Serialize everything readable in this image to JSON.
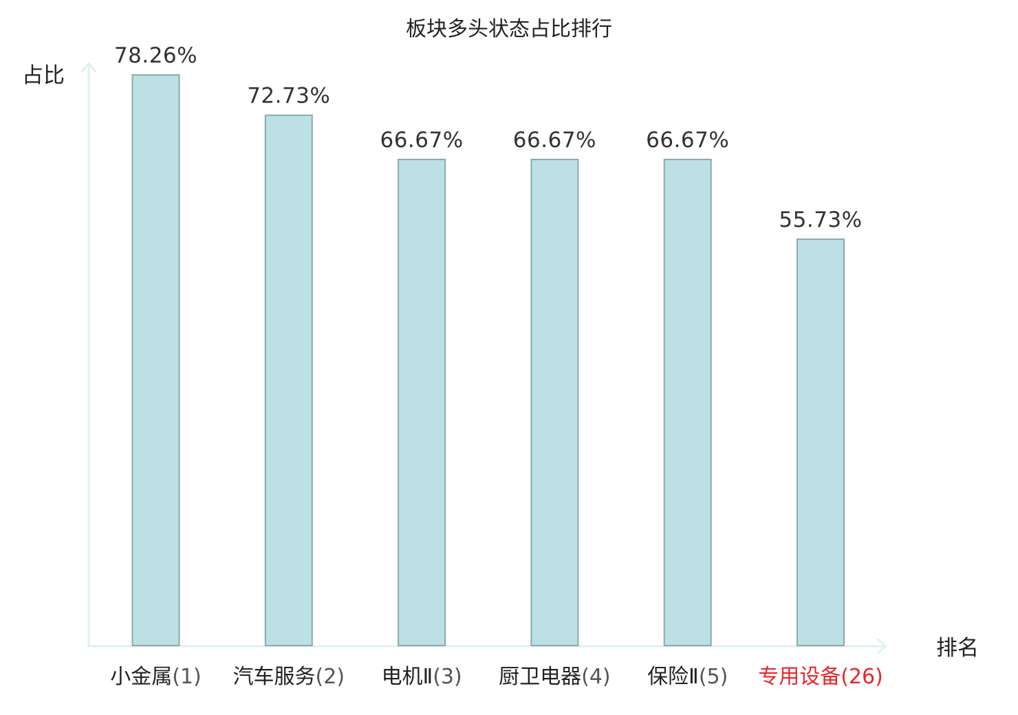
{
  "chart_data": {
    "type": "bar",
    "title": "板块多头状态占比排行",
    "ylabel": "占比",
    "xlabel": "排名",
    "categories": [
      {
        "name": "小金属",
        "rank": "(1)",
        "highlight": false
      },
      {
        "name": "汽车服务",
        "rank": "(2)",
        "highlight": false
      },
      {
        "name": "电机Ⅱ",
        "rank": "(3)",
        "highlight": false
      },
      {
        "name": "厨卫电器",
        "rank": "(4)",
        "highlight": false
      },
      {
        "name": "保险Ⅱ",
        "rank": "(5)",
        "highlight": false
      },
      {
        "name": "专用设备",
        "rank": "(26)",
        "highlight": true
      }
    ],
    "values": [
      78.26,
      72.73,
      66.67,
      66.67,
      66.67,
      55.73
    ],
    "value_labels": [
      "78.26%",
      "72.73%",
      "66.67%",
      "66.67%",
      "66.67%",
      "55.73%"
    ],
    "ylim": [
      0,
      78.26
    ],
    "grid": false,
    "colors": {
      "bar_fill": "#bce0e3",
      "bar_stroke": "#8aa9ac",
      "axis": "#dff2ef",
      "label_normal": "#222222",
      "rank_normal": "#555555",
      "label_highlight": "#e8262a"
    }
  }
}
